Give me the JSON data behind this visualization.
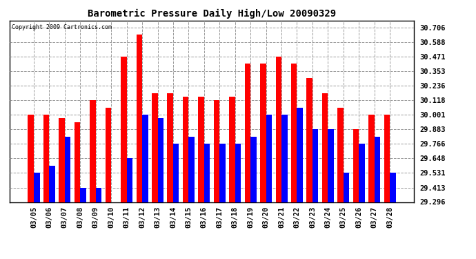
{
  "title": "Barometric Pressure Daily High/Low 20090329",
  "copyright": "Copyright 2009 Cartronics.com",
  "dates": [
    "03/05",
    "03/06",
    "03/07",
    "03/08",
    "03/09",
    "03/10",
    "03/11",
    "03/12",
    "03/13",
    "03/14",
    "03/15",
    "03/16",
    "03/17",
    "03/18",
    "03/19",
    "03/20",
    "03/21",
    "03/22",
    "03/23",
    "03/24",
    "03/25",
    "03/26",
    "03/27",
    "03/28"
  ],
  "highs": [
    30.001,
    30.001,
    29.971,
    29.942,
    30.118,
    30.059,
    30.471,
    30.647,
    30.177,
    30.177,
    30.148,
    30.148,
    30.118,
    30.148,
    30.412,
    30.412,
    30.471,
    30.412,
    30.295,
    30.177,
    30.059,
    29.883,
    30.001,
    30.001
  ],
  "lows": [
    29.531,
    29.59,
    29.825,
    29.413,
    29.413,
    29.296,
    29.648,
    30.001,
    29.971,
    29.766,
    29.825,
    29.766,
    29.766,
    29.766,
    29.825,
    30.001,
    30.001,
    30.059,
    29.883,
    29.883,
    29.531,
    29.766,
    29.825,
    29.531
  ],
  "high_color": "#ff0000",
  "low_color": "#0000ff",
  "bg_color": "#ffffff",
  "grid_color": "#999999",
  "yticks": [
    29.296,
    29.413,
    29.531,
    29.648,
    29.766,
    29.883,
    30.001,
    30.118,
    30.236,
    30.353,
    30.471,
    30.588,
    30.706
  ],
  "ymin": 29.296,
  "ymax": 30.76,
  "bar_width": 0.38
}
